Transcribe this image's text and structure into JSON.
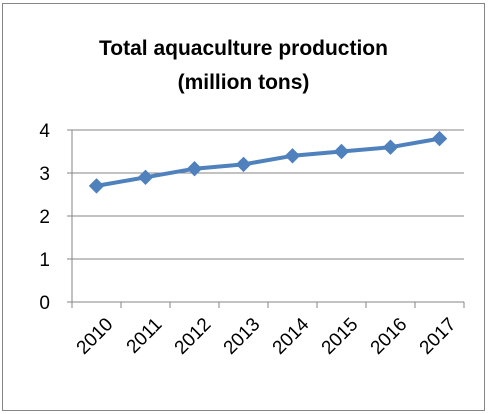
{
  "chart_data": {
    "type": "line",
    "title": "Total aquaculture production",
    "subtitle": "(million tons)",
    "categories": [
      "2010",
      "2011",
      "2012",
      "2013",
      "2014",
      "2015",
      "2016",
      "2017"
    ],
    "series": [
      {
        "values": [
          2.7,
          2.9,
          3.1,
          3.2,
          3.4,
          3.5,
          3.6,
          3.8
        ],
        "color": "#4f81bd",
        "marker": "diamond"
      }
    ],
    "yticks": [
      "0",
      "1",
      "2",
      "3",
      "4"
    ],
    "ylim": [
      0,
      4
    ],
    "grid": true,
    "legend": "none"
  }
}
